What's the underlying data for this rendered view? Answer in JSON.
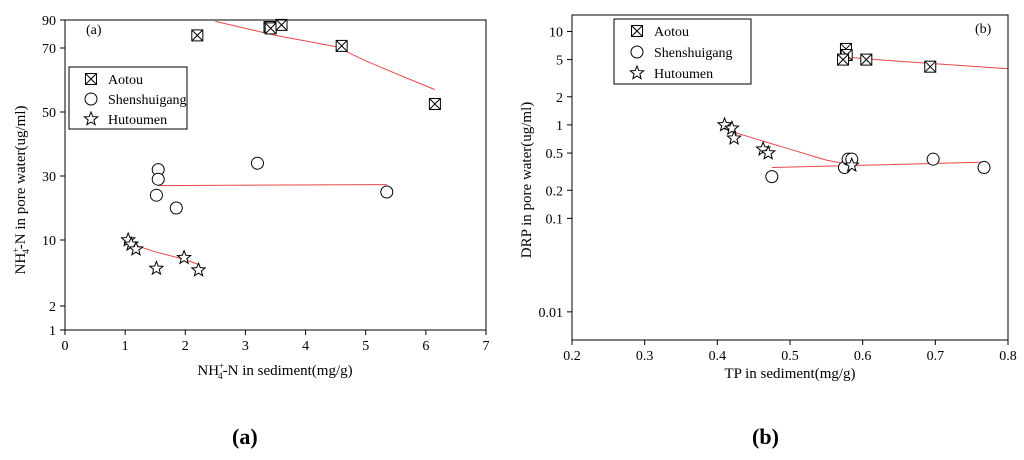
{
  "chart_data": [
    {
      "id": "a",
      "type": "scatter",
      "panel_label": "(a)",
      "caption": "a",
      "xlabel_pre": "NH",
      "xlabel_sup": "+",
      "xlabel_sub": "4",
      "xlabel_post": "-N in sediment(mg/g)",
      "ylabel_pre": "NH",
      "ylabel_sup": "+",
      "ylabel_sub": "4",
      "ylabel_post": "-N in pore water(ug/ml)",
      "xlim": [
        0,
        7
      ],
      "ylim": [
        1,
        90
      ],
      "yscale": "custom-log",
      "xticks": [
        0,
        1,
        2,
        3,
        4,
        5,
        6,
        7
      ],
      "yticks": [
        1,
        2,
        10,
        30,
        50,
        70,
        90
      ],
      "legend_position": "upper-left",
      "series": [
        {
          "name": "Aotou",
          "marker": "boxx",
          "points": [
            [
              2.2,
              79
            ],
            [
              3.4,
              85
            ],
            [
              3.42,
              84
            ],
            [
              3.6,
              86.5
            ],
            [
              4.6,
              71.5
            ],
            [
              6.15,
              52.5
            ]
          ],
          "fit": [
            [
              2.5,
              89
            ],
            [
              3.0,
              84
            ],
            [
              3.5,
              79
            ],
            [
              4.0,
              75
            ],
            [
              4.5,
              71
            ],
            [
              5.0,
              66
            ],
            [
              5.5,
              62
            ],
            [
              6.15,
              57
            ]
          ]
        },
        {
          "name": "Shenshuigang",
          "marker": "circle",
          "points": [
            [
              1.55,
              32
            ],
            [
              1.55,
              29
            ],
            [
              1.52,
              24
            ],
            [
              1.85,
              20
            ],
            [
              3.2,
              34
            ],
            [
              5.35,
              25
            ]
          ],
          "fit": [
            [
              1.55,
              27
            ],
            [
              5.35,
              27.3
            ]
          ]
        },
        {
          "name": "Hutoumen",
          "marker": "star",
          "points": [
            [
              1.05,
              10
            ],
            [
              1.1,
              9
            ],
            [
              1.18,
              8
            ],
            [
              1.52,
              5
            ],
            [
              1.98,
              6.5
            ],
            [
              2.22,
              4.8
            ]
          ],
          "fit": [
            [
              1.05,
              9.3
            ],
            [
              1.5,
              7.5
            ],
            [
              2.0,
              6.2
            ],
            [
              2.22,
              5.5
            ]
          ]
        }
      ]
    },
    {
      "id": "b",
      "type": "scatter",
      "panel_label": "(b)",
      "caption": "b",
      "xlabel": "TP in sediment(mg/g)",
      "ylabel": "DRP in pore water(ug/ml)",
      "xlim": [
        0.2,
        0.8
      ],
      "ylim": [
        0.005,
        15
      ],
      "yscale": "log",
      "xticks": [
        "0.2",
        "0.3",
        "0.4",
        "0.5",
        "0.6",
        "0.7",
        "0.8"
      ],
      "yticks": [
        "0.01",
        "0.1",
        "0.2",
        "0.5",
        "1",
        "2",
        "5",
        "10"
      ],
      "legend_position": "upper-left",
      "series": [
        {
          "name": "Aotou",
          "marker": "boxx",
          "points": [
            [
              0.577,
              6.5
            ],
            [
              0.578,
              5.6
            ],
            [
              0.573,
              5.0
            ],
            [
              0.605,
              5.0
            ],
            [
              0.693,
              4.2
            ]
          ],
          "fit": [
            [
              0.578,
              5.3
            ],
            [
              0.65,
              4.8
            ],
            [
              0.72,
              4.4
            ],
            [
              0.8,
              4.0
            ]
          ]
        },
        {
          "name": "Shenshuigang",
          "marker": "circle",
          "points": [
            [
              0.475,
              0.28
            ],
            [
              0.575,
              0.35
            ],
            [
              0.58,
              0.43
            ],
            [
              0.585,
              0.43
            ],
            [
              0.697,
              0.43
            ],
            [
              0.767,
              0.35
            ]
          ],
          "fit": [
            [
              0.475,
              0.35
            ],
            [
              0.6,
              0.37
            ],
            [
              0.767,
              0.4
            ]
          ]
        },
        {
          "name": "Hutoumen",
          "marker": "star",
          "points": [
            [
              0.41,
              1.0
            ],
            [
              0.42,
              0.92
            ],
            [
              0.423,
              0.72
            ],
            [
              0.463,
              0.55
            ],
            [
              0.47,
              0.5
            ],
            [
              0.585,
              0.37
            ]
          ],
          "fit": [
            [
              0.41,
              0.9
            ],
            [
              0.45,
              0.72
            ],
            [
              0.5,
              0.55
            ],
            [
              0.55,
              0.42
            ],
            [
              0.585,
              0.37
            ]
          ]
        }
      ]
    }
  ]
}
